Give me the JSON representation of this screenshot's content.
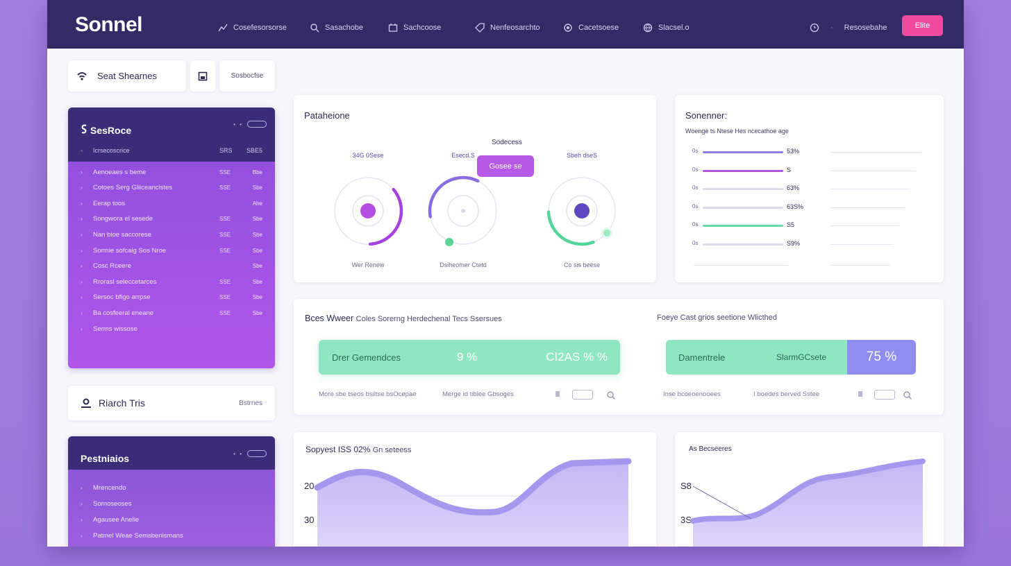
{
  "app": {
    "brand": "Sonnel",
    "top_button": "Elite"
  },
  "nav": [
    {
      "icon": "chart-icon",
      "label": "Cosefesorsorse"
    },
    {
      "icon": "search-icon",
      "label": "Sasachobe"
    },
    {
      "icon": "calendar-icon",
      "label": "Sachcoose"
    },
    {
      "icon": "tag-icon",
      "label": "Nenfeosarchto"
    },
    {
      "icon": "record-icon",
      "label": "Cacetsoese"
    },
    {
      "icon": "globe-icon",
      "label": "Slacsel.o"
    }
  ],
  "nav_right": {
    "icon": "clock-icon",
    "label": "Resosebahe"
  },
  "search": {
    "label": "Seat Shearnes",
    "filter_label": "Sosbocfse"
  },
  "panel1": {
    "title": "SesRoce",
    "subhead": {
      "label": "Icrsecoscrice",
      "c1": "SRS",
      "c2": "SBE5"
    },
    "rows": [
      {
        "label": "Aenoeaes s beme",
        "c1": "SSE",
        "c2": "Bbe"
      },
      {
        "label": "Cotoes Serg Gliiceancistes",
        "c1": "SSE",
        "c2": "Sbe"
      },
      {
        "label": "Eerap toos",
        "c1": "",
        "c2": "Ahe"
      },
      {
        "label": "Songwora el sesede",
        "c1": "SSE",
        "c2": "Sbe"
      },
      {
        "label": "Nan bioe saccorese",
        "c1": "SSE",
        "c2": "Sbe"
      },
      {
        "label": "Sormie sofcaig Sos Nroe",
        "c1": "SSE",
        "c2": "Sbe"
      },
      {
        "label": "Cosc Rceere",
        "c1": "",
        "c2": "Sbe"
      },
      {
        "label": "Rrorasl seleccetarces",
        "c1": "SSE",
        "c2": "Sbe"
      },
      {
        "label": "Sersoc bfigo arrpse",
        "c1": "SSE",
        "c2": "Sbe"
      },
      {
        "label": "Ba cosfeeral eneane",
        "c1": "SSE",
        "c2": "Sbe"
      },
      {
        "label": "Serms wissose",
        "c1": "",
        "c2": ""
      }
    ]
  },
  "research": {
    "label": "Riarch Tris",
    "right": "Bstrnes"
  },
  "panel2": {
    "title": "Pestniaios",
    "rows": [
      "Mrencendo",
      "Sornoseoses",
      "Agausee Anelie",
      "Patmel Weae Semsbenismans"
    ]
  },
  "gauge_card": {
    "title": "Pataheione",
    "center_label": "Sodecess",
    "badge": "Gosee se",
    "gauges": [
      {
        "top": "34G 0Sese",
        "bottom": "Wer Renew",
        "value": 0.35,
        "color": "#a542e0"
      },
      {
        "top": "Esecd.S",
        "bottom": "Dsiheomer Ctetd",
        "value": 0.35,
        "color": "#8b6ce0"
      },
      {
        "top": "Sbeh dseS",
        "bottom": "Co sis beese",
        "value": 0.3,
        "color": "#53d59a"
      }
    ]
  },
  "bars_card": {
    "title": "Sonenner:",
    "subtitle": "Woenge ts Ntese Hes ncecathoe age",
    "rows": [
      {
        "axis": "0s",
        "value": "53%",
        "color": "#8c7ce6",
        "fill": 0.95
      },
      {
        "axis": "0s",
        "value": "S",
        "color": "#b455d6",
        "fill": 0.95
      },
      {
        "axis": "0s",
        "value": "63%",
        "color": "#dadbe8",
        "fill": 0.95
      },
      {
        "axis": "0s",
        "value": "63S%",
        "color": "#dadbe8",
        "fill": 0.95
      },
      {
        "axis": "0s",
        "value": "S5",
        "color": "#67d9a6",
        "fill": 0.95
      },
      {
        "axis": "0s",
        "value": "S9%",
        "color": "#dadbe8",
        "fill": 0.95
      }
    ]
  },
  "wide_card": {
    "title_left_bold": "Bces Wweer",
    "title_left_rest": "Coles Sorerng Herdechenal Tecs Ssersues",
    "title_right": "Foeye Cast grios seetione Wlicthed",
    "kpi_left": {
      "label": "Drer Gemendces",
      "value1": "9 %",
      "value2": "CI2AS % %"
    },
    "kpi_right": {
      "label": "Damentrele",
      "mid": "SlarmGCsete",
      "value": "75 %"
    },
    "foot_left": [
      "More sbe tseos bsiltse bsOcepae",
      "Merge id tiblee Gbsoges"
    ],
    "foot_right": [
      "Inse bcoeoenooees",
      "I boedes berved Sstee"
    ]
  },
  "area1": {
    "title_prefix": "Sopyest",
    "title_value": "ISS 02%",
    "title_suffix": "Gn seteess",
    "y_labels": [
      "20",
      "30"
    ]
  },
  "area2": {
    "title": "As Becseeres",
    "y_labels": [
      "S8",
      "3S"
    ]
  }
}
